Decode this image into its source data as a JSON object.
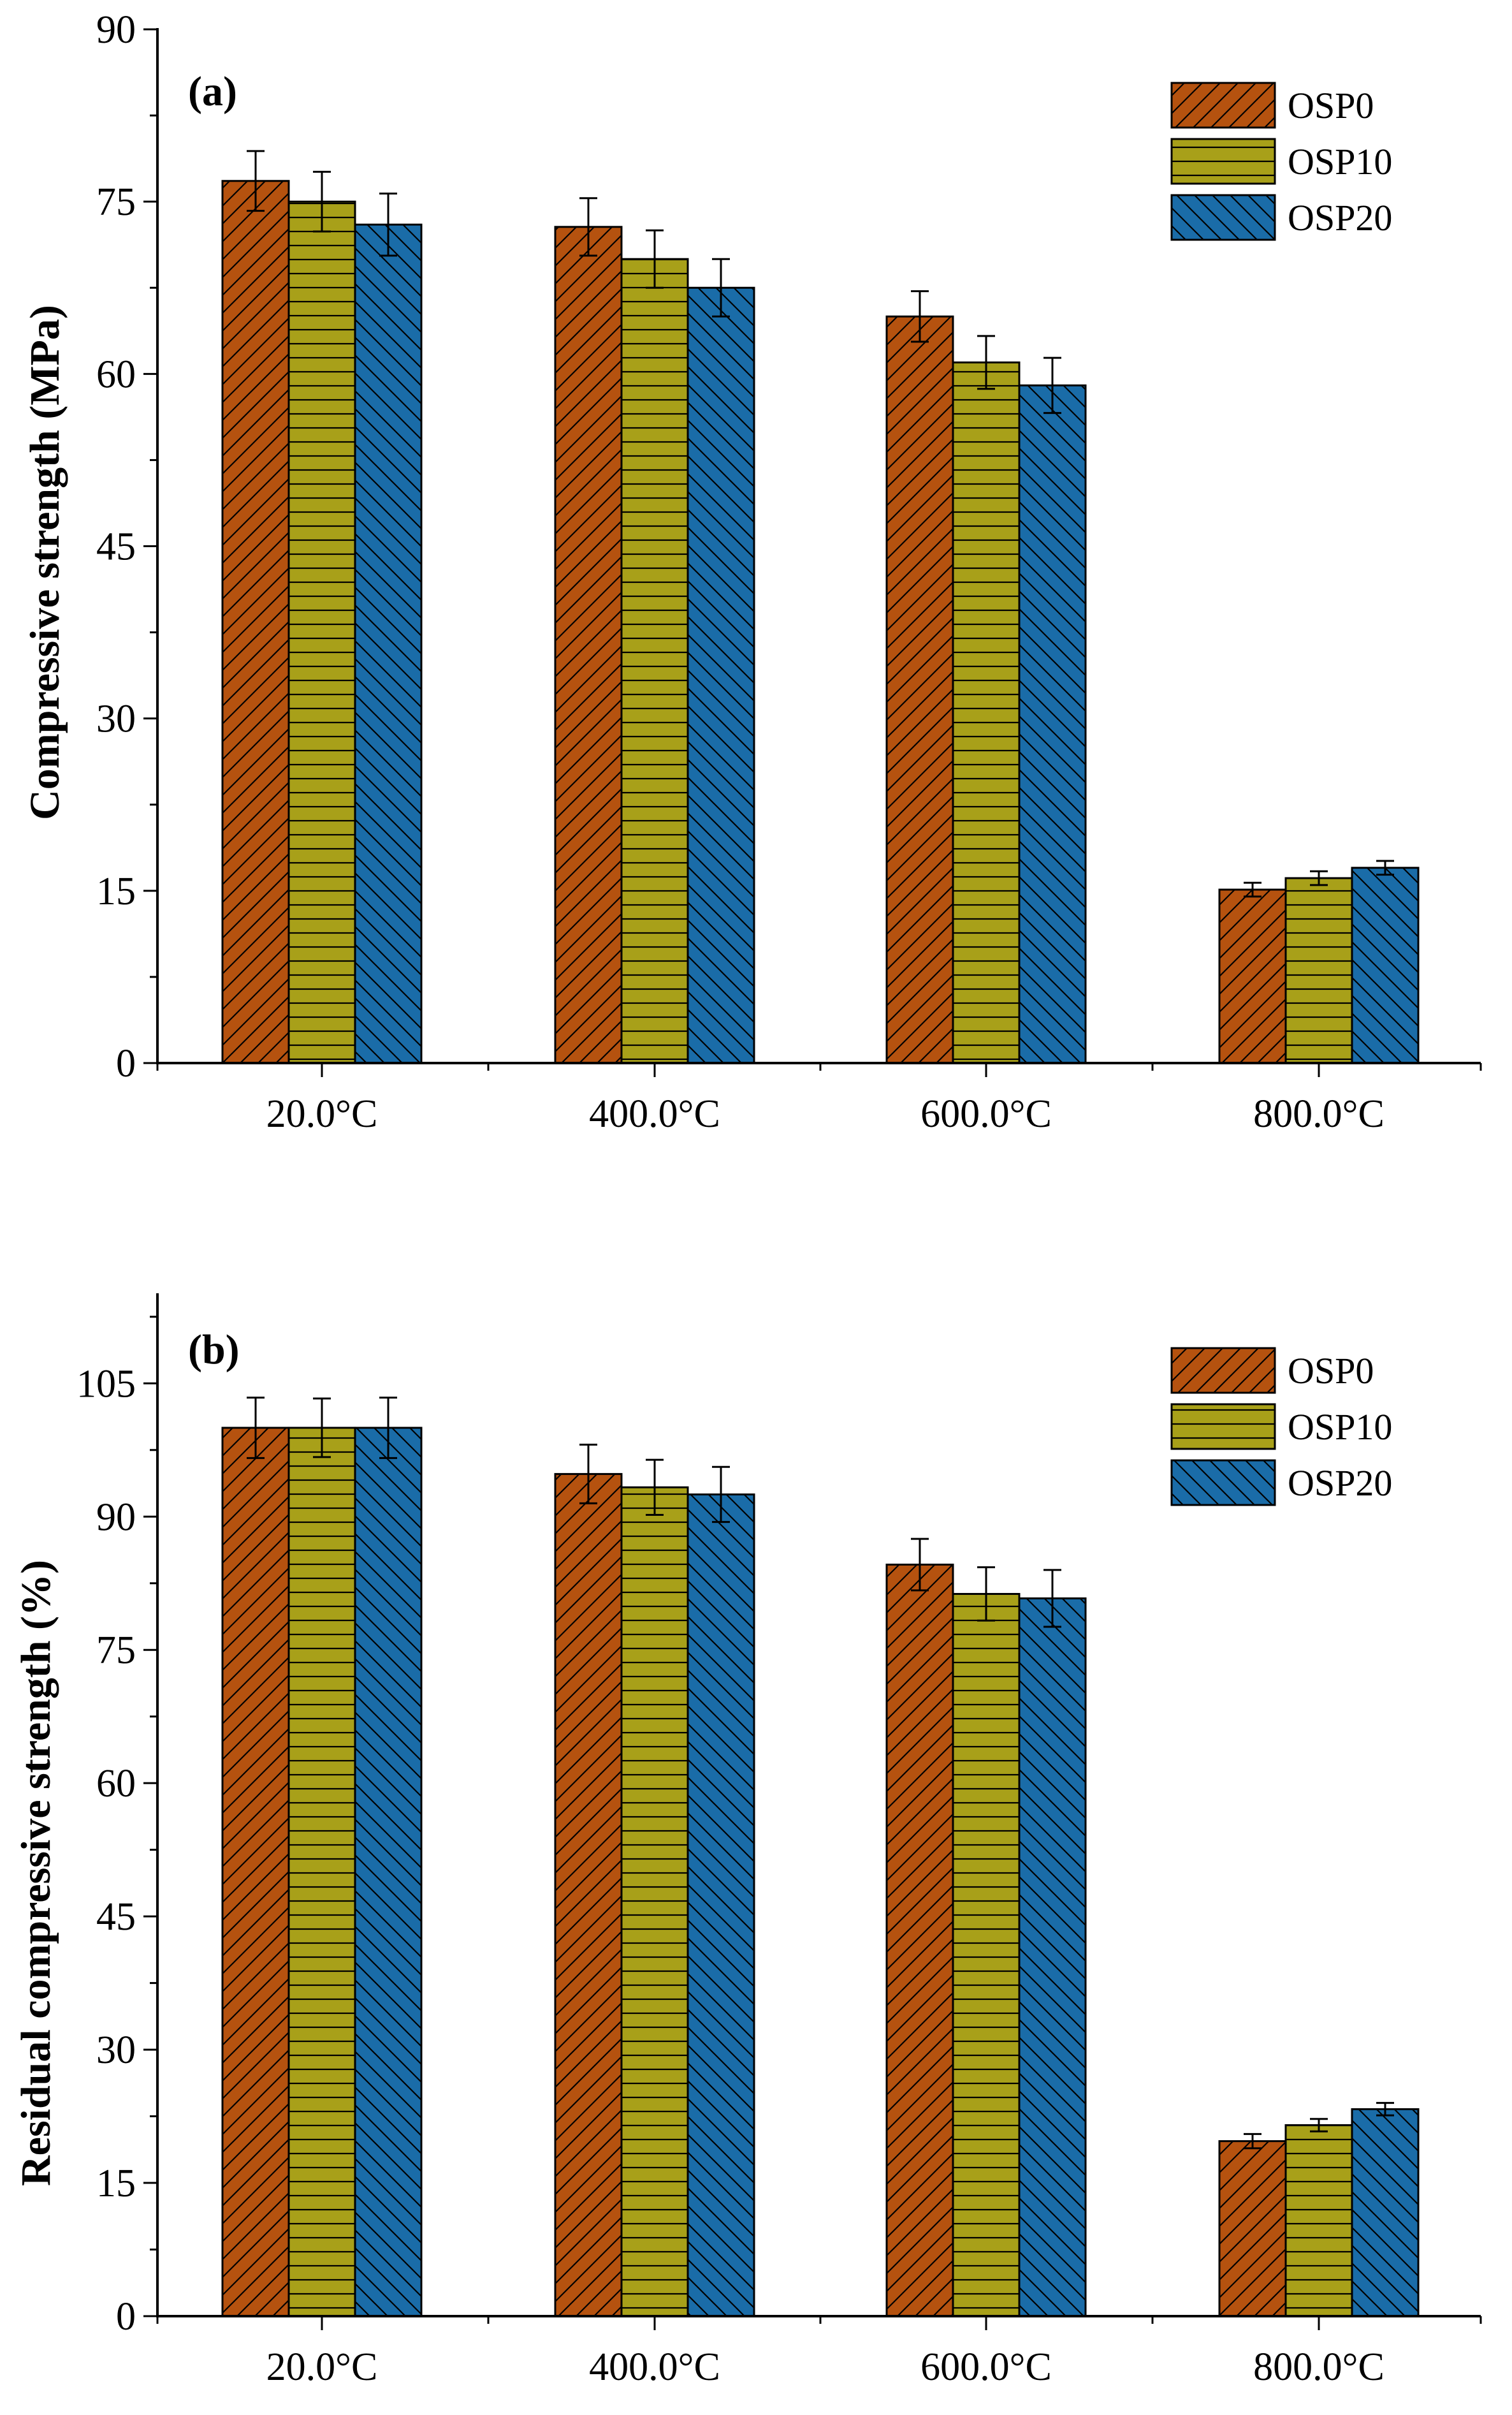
{
  "figure": {
    "series_styles": [
      {
        "name": "OSP0",
        "color": "#B5520F",
        "hatch": "diag-up"
      },
      {
        "name": "OSP10",
        "color": "#A8A019",
        "hatch": "horizontal"
      },
      {
        "name": "OSP20",
        "color": "#1A6CA8",
        "hatch": "diag-down"
      }
    ]
  },
  "chart_data": [
    {
      "type": "bar",
      "panel_label": "(a)",
      "title": "",
      "xlabel": "",
      "ylabel": "Compressive strength (MPa)",
      "categories": [
        "20.0°C",
        "400.0°C",
        "600.0°C",
        "800.0°C"
      ],
      "ylim": [
        0,
        90
      ],
      "yticks": [
        0,
        15,
        30,
        45,
        60,
        75,
        90
      ],
      "ytick_labels": [
        "0",
        "15",
        "30",
        "45",
        "60",
        "75",
        "90"
      ],
      "legend": [
        "OSP0",
        "OSP10",
        "OSP20"
      ],
      "legend_position": "top-right",
      "series": [
        {
          "name": "OSP0",
          "values": [
            76.8,
            72.8,
            65.0,
            15.1
          ],
          "errors": [
            2.6,
            2.5,
            2.2,
            0.6
          ]
        },
        {
          "name": "OSP10",
          "values": [
            75.0,
            70.0,
            61.0,
            16.1
          ],
          "errors": [
            2.6,
            2.5,
            2.3,
            0.6
          ]
        },
        {
          "name": "OSP20",
          "values": [
            73.0,
            67.5,
            59.0,
            17.0
          ],
          "errors": [
            2.7,
            2.5,
            2.4,
            0.6
          ]
        }
      ]
    },
    {
      "type": "bar",
      "panel_label": "(b)",
      "title": "",
      "xlabel": "",
      "ylabel": "Residual compressive strength (%)",
      "categories": [
        "20.0°C",
        "400.0°C",
        "600.0°C",
        "800.0°C"
      ],
      "ylim": [
        0,
        115
      ],
      "yticks": [
        0,
        15,
        30,
        45,
        60,
        75,
        90,
        105
      ],
      "ytick_labels": [
        "0",
        "15",
        "30",
        "45",
        "60",
        "75",
        "90",
        "105"
      ],
      "legend": [
        "OSP0",
        "OSP10",
        "OSP20"
      ],
      "legend_position": "top-right",
      "series": [
        {
          "name": "OSP0",
          "values": [
            100,
            94.8,
            84.6,
            19.7
          ],
          "errors": [
            3.4,
            3.3,
            2.9,
            0.8
          ]
        },
        {
          "name": "OSP10",
          "values": [
            100,
            93.3,
            81.3,
            21.5
          ],
          "errors": [
            3.3,
            3.1,
            3.0,
            0.7
          ]
        },
        {
          "name": "OSP20",
          "values": [
            100,
            92.5,
            80.8,
            23.3
          ],
          "errors": [
            3.4,
            3.1,
            3.2,
            0.7
          ]
        }
      ]
    }
  ]
}
